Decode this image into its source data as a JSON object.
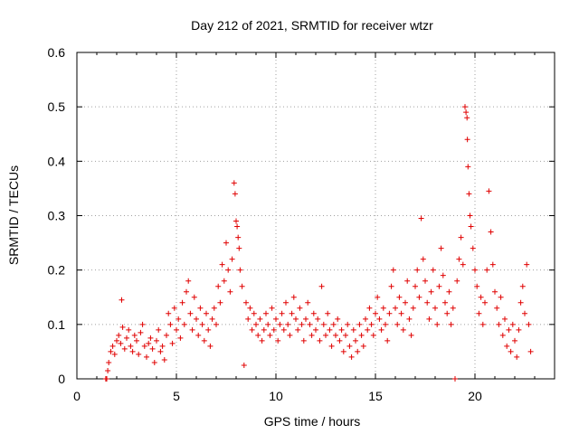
{
  "chart_data": {
    "type": "scatter",
    "title": "Day 212 of 2021, SRMTID for receiver wtzr",
    "xlabel": "GPS time / hours",
    "ylabel": "SRMTID / TECUs",
    "xlim": [
      0,
      24
    ],
    "ylim": [
      0,
      0.6
    ],
    "xticks": [
      0,
      5,
      10,
      15,
      20
    ],
    "yticks": [
      0,
      0.1,
      0.2,
      0.3,
      0.4,
      0.5,
      0.6
    ],
    "xtick_labels": [
      "0",
      "5",
      "10",
      "15",
      "20"
    ],
    "ytick_labels": [
      "0",
      "0.1",
      "0.2",
      "0.3",
      "0.4",
      "0.5",
      "0.6"
    ],
    "grid": true,
    "marker": "plus",
    "color": "#e00000",
    "series": [
      {
        "name": "SRMTID",
        "points": [
          [
            1.45,
            0.0
          ],
          [
            1.5,
            0.0
          ],
          [
            1.55,
            0.015
          ],
          [
            1.6,
            0.03
          ],
          [
            1.7,
            0.05
          ],
          [
            1.8,
            0.06
          ],
          [
            1.9,
            0.045
          ],
          [
            2.0,
            0.07
          ],
          [
            2.1,
            0.08
          ],
          [
            2.2,
            0.065
          ],
          [
            2.25,
            0.145
          ],
          [
            2.3,
            0.095
          ],
          [
            2.4,
            0.055
          ],
          [
            2.5,
            0.075
          ],
          [
            2.6,
            0.09
          ],
          [
            2.7,
            0.06
          ],
          [
            2.8,
            0.05
          ],
          [
            2.9,
            0.08
          ],
          [
            3.0,
            0.07
          ],
          [
            3.1,
            0.045
          ],
          [
            3.2,
            0.085
          ],
          [
            3.3,
            0.1
          ],
          [
            3.4,
            0.06
          ],
          [
            3.5,
            0.04
          ],
          [
            3.6,
            0.065
          ],
          [
            3.7,
            0.075
          ],
          [
            3.8,
            0.055
          ],
          [
            3.9,
            0.03
          ],
          [
            4.0,
            0.07
          ],
          [
            4.1,
            0.09
          ],
          [
            4.2,
            0.05
          ],
          [
            4.3,
            0.06
          ],
          [
            4.4,
            0.035
          ],
          [
            4.5,
            0.08
          ],
          [
            4.6,
            0.12
          ],
          [
            4.7,
            0.1
          ],
          [
            4.8,
            0.065
          ],
          [
            4.9,
            0.13
          ],
          [
            5.0,
            0.09
          ],
          [
            5.1,
            0.11
          ],
          [
            5.2,
            0.075
          ],
          [
            5.3,
            0.14
          ],
          [
            5.4,
            0.1
          ],
          [
            5.5,
            0.16
          ],
          [
            5.6,
            0.18
          ],
          [
            5.7,
            0.12
          ],
          [
            5.8,
            0.09
          ],
          [
            5.9,
            0.15
          ],
          [
            6.0,
            0.11
          ],
          [
            6.1,
            0.08
          ],
          [
            6.2,
            0.13
          ],
          [
            6.3,
            0.1
          ],
          [
            6.4,
            0.07
          ],
          [
            6.5,
            0.12
          ],
          [
            6.6,
            0.09
          ],
          [
            6.7,
            0.06
          ],
          [
            6.8,
            0.11
          ],
          [
            6.9,
            0.13
          ],
          [
            7.0,
            0.1
          ],
          [
            7.1,
            0.17
          ],
          [
            7.2,
            0.14
          ],
          [
            7.3,
            0.21
          ],
          [
            7.4,
            0.18
          ],
          [
            7.5,
            0.25
          ],
          [
            7.6,
            0.2
          ],
          [
            7.7,
            0.16
          ],
          [
            7.8,
            0.22
          ],
          [
            7.9,
            0.36
          ],
          [
            7.95,
            0.34
          ],
          [
            8.0,
            0.29
          ],
          [
            8.05,
            0.28
          ],
          [
            8.1,
            0.26
          ],
          [
            8.15,
            0.24
          ],
          [
            8.2,
            0.2
          ],
          [
            8.3,
            0.17
          ],
          [
            8.4,
            0.025
          ],
          [
            8.5,
            0.14
          ],
          [
            8.6,
            0.11
          ],
          [
            8.7,
            0.13
          ],
          [
            8.8,
            0.09
          ],
          [
            8.9,
            0.12
          ],
          [
            9.0,
            0.1
          ],
          [
            9.1,
            0.08
          ],
          [
            9.2,
            0.11
          ],
          [
            9.3,
            0.07
          ],
          [
            9.4,
            0.09
          ],
          [
            9.5,
            0.12
          ],
          [
            9.6,
            0.1
          ],
          [
            9.7,
            0.08
          ],
          [
            9.8,
            0.13
          ],
          [
            9.9,
            0.09
          ],
          [
            10.0,
            0.11
          ],
          [
            10.1,
            0.07
          ],
          [
            10.2,
            0.1
          ],
          [
            10.3,
            0.12
          ],
          [
            10.4,
            0.09
          ],
          [
            10.5,
            0.14
          ],
          [
            10.6,
            0.1
          ],
          [
            10.7,
            0.08
          ],
          [
            10.8,
            0.12
          ],
          [
            10.9,
            0.15
          ],
          [
            11.0,
            0.11
          ],
          [
            11.1,
            0.09
          ],
          [
            11.2,
            0.13
          ],
          [
            11.3,
            0.1
          ],
          [
            11.4,
            0.07
          ],
          [
            11.5,
            0.11
          ],
          [
            11.6,
            0.14
          ],
          [
            11.7,
            0.1
          ],
          [
            11.8,
            0.08
          ],
          [
            11.9,
            0.12
          ],
          [
            12.0,
            0.09
          ],
          [
            12.1,
            0.11
          ],
          [
            12.2,
            0.07
          ],
          [
            12.3,
            0.17
          ],
          [
            12.4,
            0.1
          ],
          [
            12.5,
            0.08
          ],
          [
            12.6,
            0.12
          ],
          [
            12.7,
            0.09
          ],
          [
            12.8,
            0.06
          ],
          [
            12.9,
            0.1
          ],
          [
            13.0,
            0.08
          ],
          [
            13.1,
            0.11
          ],
          [
            13.2,
            0.07
          ],
          [
            13.3,
            0.09
          ],
          [
            13.4,
            0.05
          ],
          [
            13.5,
            0.08
          ],
          [
            13.6,
            0.1
          ],
          [
            13.7,
            0.06
          ],
          [
            13.8,
            0.04
          ],
          [
            13.9,
            0.09
          ],
          [
            14.0,
            0.07
          ],
          [
            14.1,
            0.05
          ],
          [
            14.2,
            0.1
          ],
          [
            14.3,
            0.08
          ],
          [
            14.4,
            0.06
          ],
          [
            14.5,
            0.11
          ],
          [
            14.6,
            0.09
          ],
          [
            14.7,
            0.13
          ],
          [
            14.8,
            0.1
          ],
          [
            14.9,
            0.08
          ],
          [
            15.0,
            0.12
          ],
          [
            15.1,
            0.15
          ],
          [
            15.2,
            0.11
          ],
          [
            15.3,
            0.09
          ],
          [
            15.4,
            0.13
          ],
          [
            15.5,
            0.1
          ],
          [
            15.6,
            0.07
          ],
          [
            15.7,
            0.12
          ],
          [
            15.8,
            0.17
          ],
          [
            15.9,
            0.2
          ],
          [
            16.0,
            0.13
          ],
          [
            16.1,
            0.1
          ],
          [
            16.2,
            0.15
          ],
          [
            16.3,
            0.12
          ],
          [
            16.4,
            0.09
          ],
          [
            16.5,
            0.14
          ],
          [
            16.6,
            0.18
          ],
          [
            16.7,
            0.11
          ],
          [
            16.8,
            0.08
          ],
          [
            16.9,
            0.13
          ],
          [
            17.0,
            0.17
          ],
          [
            17.1,
            0.2
          ],
          [
            17.2,
            0.15
          ],
          [
            17.3,
            0.295
          ],
          [
            17.4,
            0.22
          ],
          [
            17.5,
            0.18
          ],
          [
            17.6,
            0.14
          ],
          [
            17.7,
            0.11
          ],
          [
            17.8,
            0.16
          ],
          [
            17.9,
            0.2
          ],
          [
            18.0,
            0.13
          ],
          [
            18.1,
            0.1
          ],
          [
            18.2,
            0.17
          ],
          [
            18.3,
            0.24
          ],
          [
            18.4,
            0.19
          ],
          [
            18.5,
            0.14
          ],
          [
            18.6,
            0.12
          ],
          [
            18.7,
            0.16
          ],
          [
            18.8,
            0.1
          ],
          [
            18.9,
            0.13
          ],
          [
            19.0,
            0.0
          ],
          [
            19.1,
            0.18
          ],
          [
            19.2,
            0.22
          ],
          [
            19.3,
            0.26
          ],
          [
            19.4,
            0.21
          ],
          [
            19.5,
            0.5
          ],
          [
            19.55,
            0.49
          ],
          [
            19.6,
            0.48
          ],
          [
            19.62,
            0.44
          ],
          [
            19.65,
            0.39
          ],
          [
            19.7,
            0.34
          ],
          [
            19.75,
            0.3
          ],
          [
            19.8,
            0.28
          ],
          [
            19.9,
            0.24
          ],
          [
            20.0,
            0.2
          ],
          [
            20.1,
            0.17
          ],
          [
            20.2,
            0.12
          ],
          [
            20.3,
            0.15
          ],
          [
            20.4,
            0.1
          ],
          [
            20.5,
            0.14
          ],
          [
            20.6,
            0.2
          ],
          [
            20.7,
            0.345
          ],
          [
            20.8,
            0.27
          ],
          [
            20.9,
            0.21
          ],
          [
            21.0,
            0.16
          ],
          [
            21.1,
            0.13
          ],
          [
            21.2,
            0.1
          ],
          [
            21.3,
            0.15
          ],
          [
            21.4,
            0.08
          ],
          [
            21.5,
            0.11
          ],
          [
            21.6,
            0.06
          ],
          [
            21.7,
            0.09
          ],
          [
            21.8,
            0.05
          ],
          [
            21.9,
            0.1
          ],
          [
            22.0,
            0.07
          ],
          [
            22.1,
            0.04
          ],
          [
            22.2,
            0.09
          ],
          [
            22.3,
            0.14
          ],
          [
            22.4,
            0.17
          ],
          [
            22.5,
            0.12
          ],
          [
            22.6,
            0.21
          ],
          [
            22.7,
            0.1
          ],
          [
            22.8,
            0.05
          ]
        ]
      }
    ]
  }
}
